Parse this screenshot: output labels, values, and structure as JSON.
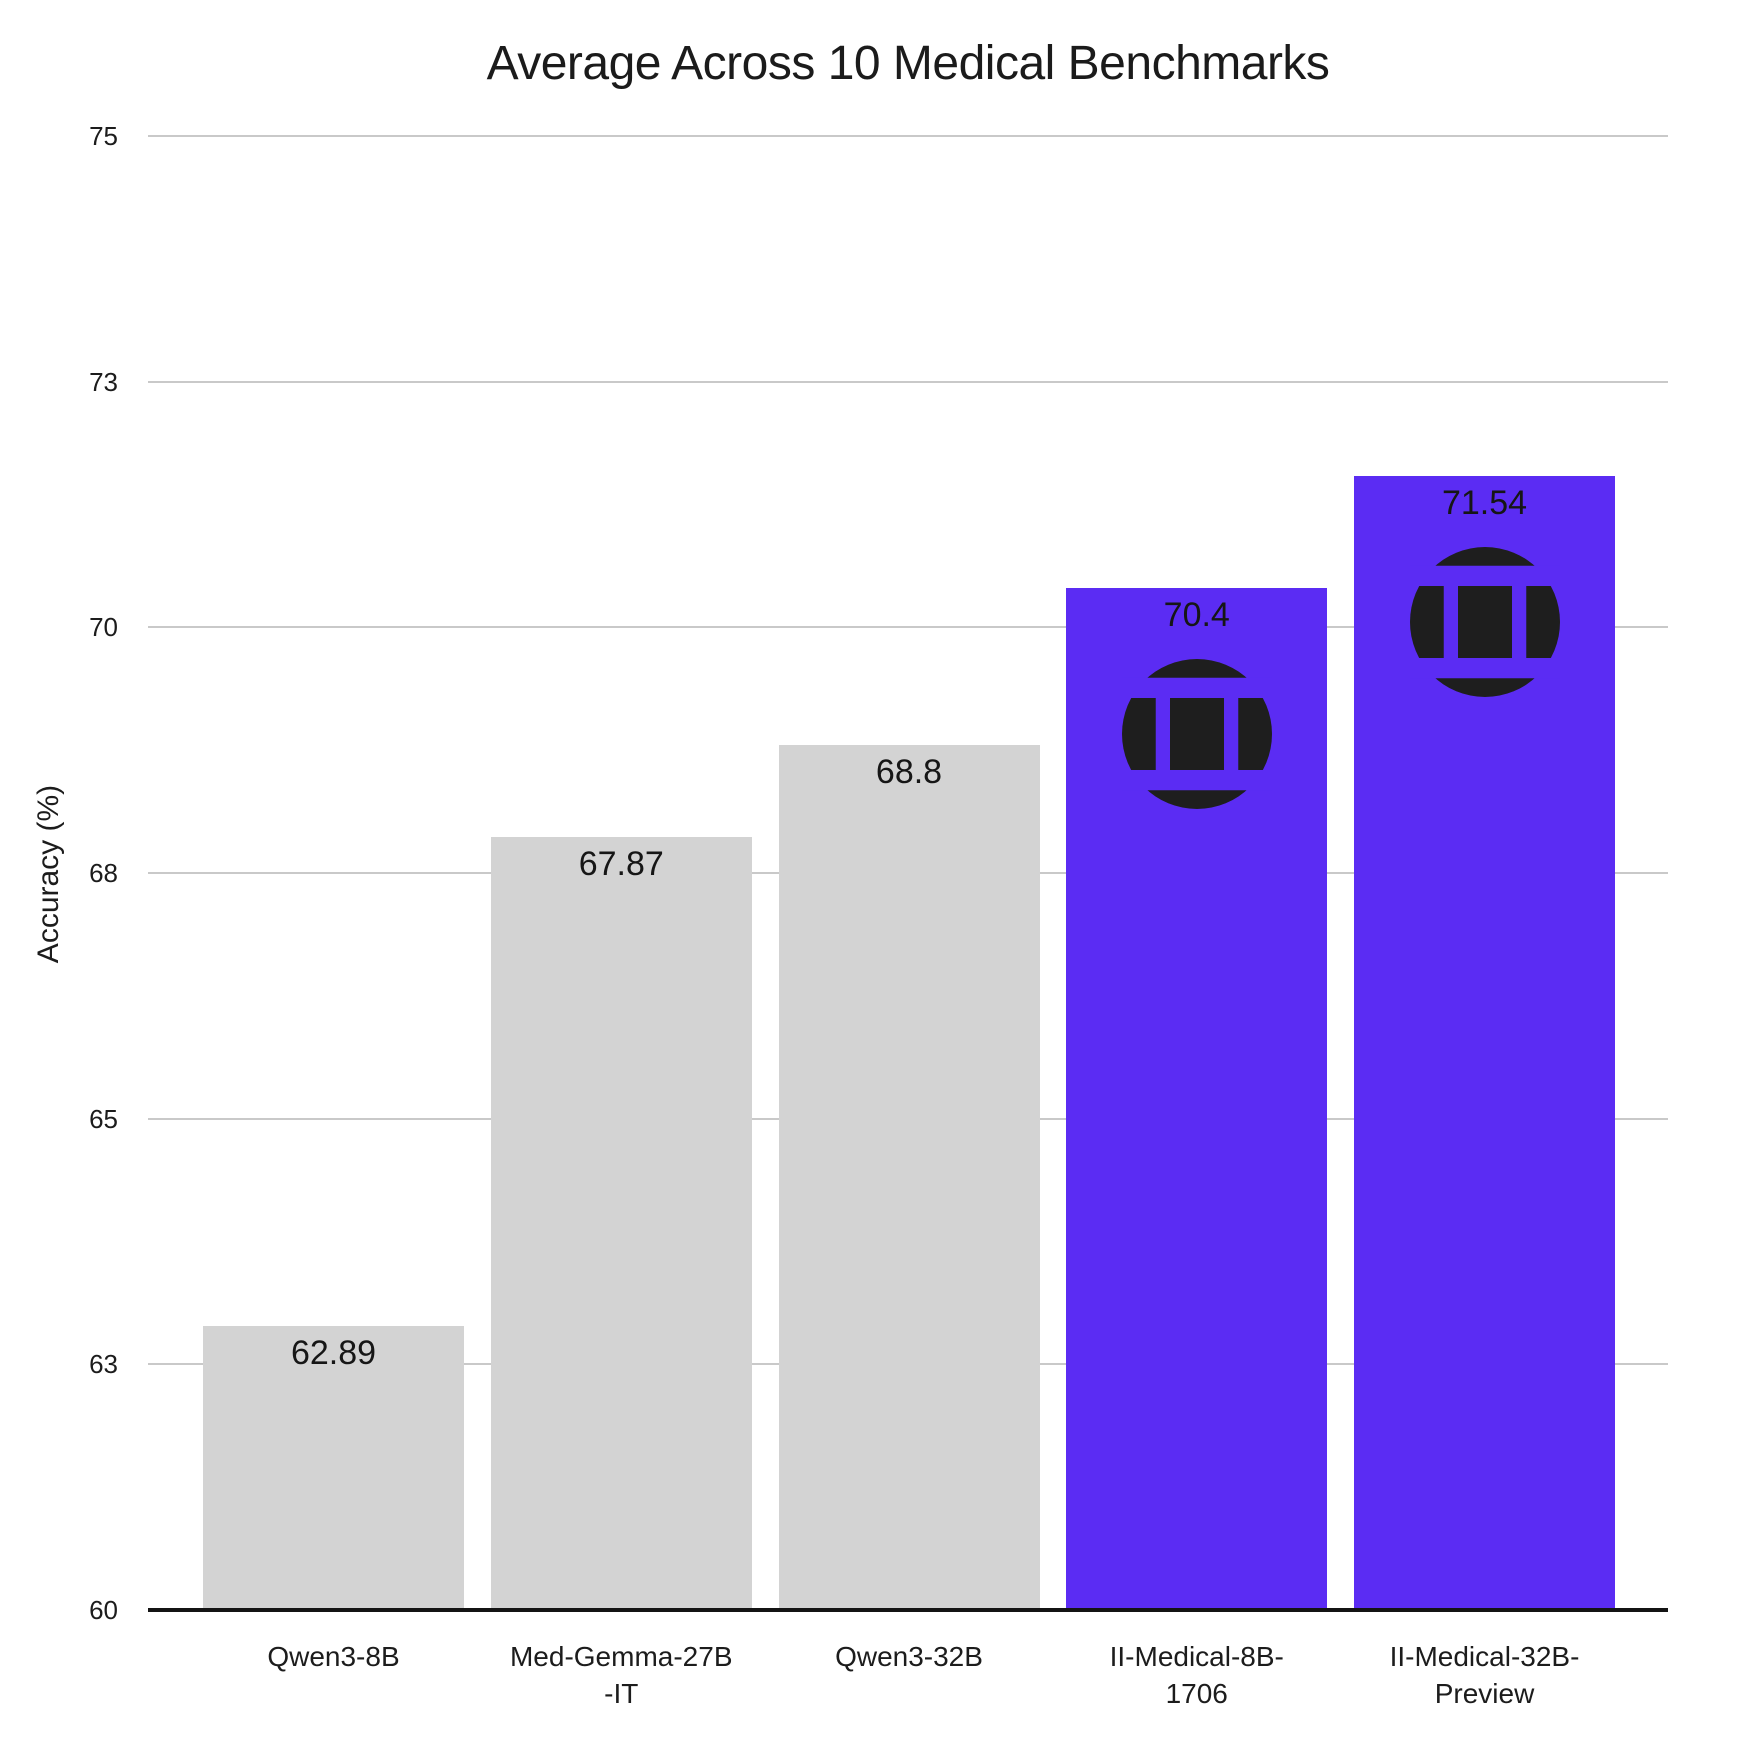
{
  "chart_data": {
    "type": "bar",
    "title": "Average Across 10 Medical Benchmarks",
    "ylabel": "Accuracy (%)",
    "xlabel": "",
    "ylim": [
      60,
      75
    ],
    "grid": true,
    "legend": "none",
    "categories": [
      "Qwen3-8B",
      "Med-Gemma-27B-IT",
      "Qwen3-32B",
      "II-Medical-8B-1706",
      "II-Medical-32B-Preview"
    ],
    "values": [
      62.89,
      67.87,
      68.8,
      70.4,
      71.54
    ],
    "bars": [
      {
        "label_lines": [
          "Qwen3-8B"
        ],
        "value": 62.89,
        "value_label": "62.89",
        "highlight": false,
        "icon": null
      },
      {
        "label_lines": [
          "Med-Gemma-27B",
          "-IT"
        ],
        "value": 67.87,
        "value_label": "67.87",
        "highlight": false,
        "icon": null
      },
      {
        "label_lines": [
          "Qwen3-32B"
        ],
        "value": 68.8,
        "value_label": "68.8",
        "highlight": false,
        "icon": null
      },
      {
        "label_lines": [
          "II-Medical-8B-",
          "1706"
        ],
        "value": 70.4,
        "value_label": "70.4",
        "highlight": true,
        "icon": "intelligent-internet-logo"
      },
      {
        "label_lines": [
          "II-Medical-32B-",
          "Preview"
        ],
        "value": 71.54,
        "value_label": "71.54",
        "highlight": true,
        "icon": "intelligent-internet-logo"
      }
    ],
    "yticks": [
      {
        "value": 75,
        "label": "75"
      },
      {
        "value": 72.5,
        "label": "73"
      },
      {
        "value": 70,
        "label": "70"
      },
      {
        "value": 67.5,
        "label": "68"
      },
      {
        "value": 65,
        "label": "65"
      },
      {
        "value": 62.5,
        "label": "63"
      },
      {
        "value": 60,
        "label": "60"
      }
    ],
    "colors": {
      "bar_default": "#d3d3d3",
      "bar_highlight": "#5b2cf3",
      "logo": "#1e1e1e",
      "grid": "#c9c9c9",
      "axis": "#141414",
      "text": "#1c1c1c"
    }
  }
}
